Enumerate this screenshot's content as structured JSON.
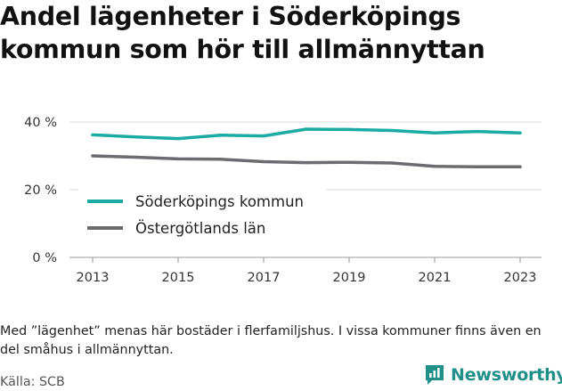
{
  "title": "Andel lägenheter i Söderköpings kommun som hör till allmännyttan",
  "note": "Med ”lägenhet” menas här bostäder i flerfamiljshus. I vissa kommuner finns även en del småhus i allmännyttan.",
  "source": "Källa: SCB",
  "brand": {
    "name": "Newsworthy",
    "icon": "newsworthy-chart-logo-icon"
  },
  "colors": {
    "primary": "#1aaca3",
    "secondary": "#6c6b70",
    "grid": "#d9d9d9"
  },
  "chart_data": {
    "type": "line",
    "x": [
      2013,
      2014,
      2015,
      2016,
      2017,
      2018,
      2019,
      2020,
      2021,
      2022,
      2023
    ],
    "xticks": [
      2013,
      2015,
      2017,
      2019,
      2021,
      2023
    ],
    "xtick_labels": [
      "2013",
      "2015",
      "2017",
      "2019",
      "2021",
      "2023"
    ],
    "ylim": [
      0,
      40
    ],
    "yticks": [
      0,
      20,
      40
    ],
    "ytick_labels": [
      "0 %",
      "20 %",
      "40 %"
    ],
    "grid": true,
    "legend_position": "bottom-left",
    "series": [
      {
        "name": "Söderköpings kommun",
        "values": [
          36.2,
          35.6,
          35.1,
          36.1,
          35.9,
          37.9,
          37.8,
          37.5,
          36.8,
          37.2,
          36.8
        ]
      },
      {
        "name": "Östergötlands län",
        "values": [
          30.0,
          29.6,
          29.1,
          29.0,
          28.3,
          28.0,
          28.1,
          27.9,
          26.9,
          26.8,
          26.8
        ]
      }
    ]
  }
}
